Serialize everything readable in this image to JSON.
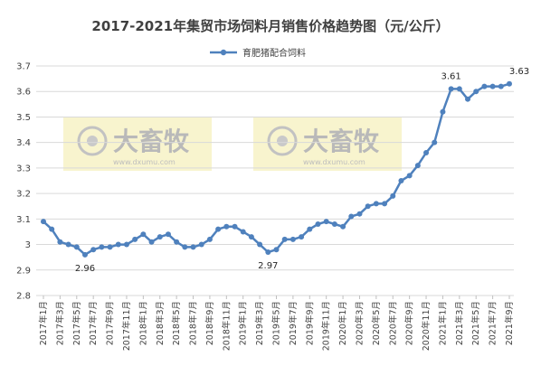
{
  "chart_data": {
    "type": "line",
    "title": "2017-2021年集贸市场饲料月销售价格趋势图（元/公斤）",
    "xlabel": "",
    "ylabel": "",
    "ylim": [
      2.8,
      3.7
    ],
    "yticks": [
      "2.8",
      "2.9",
      "3",
      "3.1",
      "3.2",
      "3.3",
      "3.4",
      "3.5",
      "3.6",
      "3.7"
    ],
    "grid": true,
    "legend_position": "top-center",
    "x_tick_labels": [
      "2017年1月",
      "2017年3月",
      "2017年5月",
      "2017年7月",
      "2017年9月",
      "2017年11月",
      "2018年1月",
      "2018年3月",
      "2018年5月",
      "2018年7月",
      "2018年9月",
      "2018年11月",
      "2019年1月",
      "2019年3月",
      "2019年5月",
      "2019年7月",
      "2019年9月",
      "2019年11月",
      "2020年1月",
      "2020年3月",
      "2020年5月",
      "2020年7月",
      "2020年9月",
      "2020年11月",
      "2021年1月",
      "2021年3月",
      "2021年5月",
      "2021年7月",
      "2021年9月"
    ],
    "series": [
      {
        "name": "育肥猪配合饲料",
        "color": "#4f81bd",
        "values": [
          3.09,
          3.06,
          3.01,
          3.0,
          2.99,
          2.96,
          2.98,
          2.99,
          2.99,
          3.0,
          3.0,
          3.02,
          3.04,
          3.01,
          3.03,
          3.04,
          3.01,
          2.99,
          2.99,
          3.0,
          3.02,
          3.06,
          3.07,
          3.07,
          3.05,
          3.03,
          3.0,
          2.97,
          2.98,
          3.02,
          3.02,
          3.03,
          3.06,
          3.08,
          3.09,
          3.08,
          3.07,
          3.11,
          3.12,
          3.15,
          3.16,
          3.16,
          3.19,
          3.25,
          3.27,
          3.31,
          3.36,
          3.4,
          3.52,
          3.61,
          3.61,
          3.57,
          3.6,
          3.62,
          3.62,
          3.62,
          3.63
        ]
      }
    ],
    "annotations": [
      {
        "index": 5,
        "label": "2.96"
      },
      {
        "index": 27,
        "label": "2.97"
      },
      {
        "index": 49,
        "label": "3.61"
      },
      {
        "index": 56,
        "label": "3.63"
      }
    ]
  },
  "watermark": {
    "text": "大畜牧",
    "url": "www.dxumu.com",
    "icon": "camera-lens-icon"
  }
}
